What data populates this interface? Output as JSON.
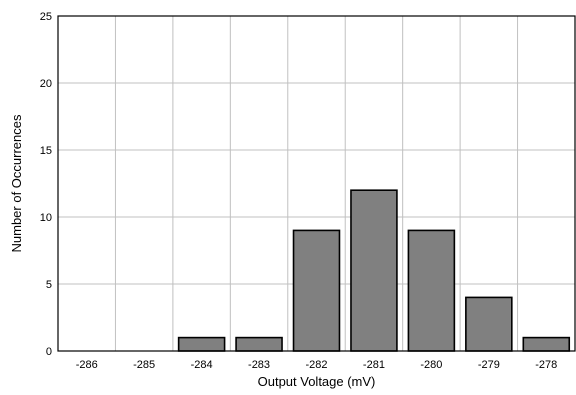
{
  "chart_data": {
    "type": "bar",
    "categories": [
      "-286",
      "-285",
      "-284",
      "-283",
      "-282",
      "-281",
      "-280",
      "-279",
      "-278"
    ],
    "values": [
      0,
      0,
      1,
      1,
      9,
      12,
      9,
      4,
      1
    ],
    "xlabel": "Output Voltage (mV)",
    "ylabel": "Number of Occurrences",
    "ylim": [
      0,
      25
    ],
    "yticks": [
      "0",
      "5",
      "10",
      "15",
      "20",
      "25"
    ],
    "grid": "on",
    "bar_color": "#808080",
    "bar_edge_color": "#000000",
    "grid_color": "#c0c0c0"
  }
}
